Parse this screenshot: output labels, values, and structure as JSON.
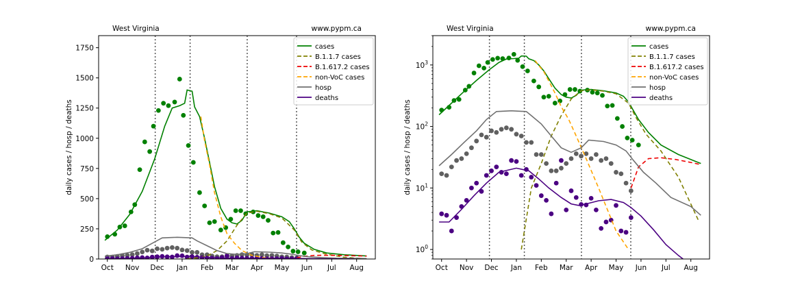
{
  "chart_data": [
    {
      "type": "line",
      "scale": "linear",
      "title_left": "West Virginia",
      "title_right": "www.pypm.ca",
      "ylabel": "daily cases / hosp / deaths",
      "xlabel": "",
      "ylim": [
        0,
        1850
      ],
      "y_ticks": [
        0,
        250,
        500,
        750,
        1000,
        1250,
        1500,
        1750
      ],
      "y_tick_labels": [
        "0",
        "250",
        "500",
        "750",
        "1000",
        "1250",
        "1500",
        "1750"
      ],
      "x_range_months": [
        -0.35,
        10.75
      ],
      "x_ticks": [
        0,
        1,
        2,
        3,
        4,
        5,
        6,
        7,
        8,
        9,
        10
      ],
      "x_tick_labels": [
        "Oct",
        "Nov",
        "Dec",
        "Jan",
        "Feb",
        "Mar",
        "Apr",
        "May",
        "Jun",
        "Jul",
        "Aug"
      ],
      "vlines_month": [
        1.92,
        3.32,
        5.61,
        7.59
      ],
      "grid": false,
      "legend_position": "top-right",
      "series": [
        {
          "name": "cases",
          "kind": "line",
          "color": "#008000",
          "dash": "solid",
          "points": [
            [
              -0.1,
              155
            ],
            [
              0.4,
              240
            ],
            [
              0.9,
              370
            ],
            [
              1.4,
              560
            ],
            [
              1.9,
              830
            ],
            [
              2.3,
              1100
            ],
            [
              2.6,
              1250
            ],
            [
              2.9,
              1270
            ],
            [
              3.1,
              1290
            ],
            [
              3.2,
              1400
            ],
            [
              3.4,
              1390
            ],
            [
              3.5,
              1260
            ],
            [
              3.7,
              1180
            ],
            [
              3.9,
              1000
            ],
            [
              4.1,
              800
            ],
            [
              4.3,
              600
            ],
            [
              4.55,
              420
            ],
            [
              4.8,
              330
            ],
            [
              5.0,
              300
            ],
            [
              5.2,
              290
            ],
            [
              5.4,
              320
            ],
            [
              5.6,
              390
            ],
            [
              6.0,
              400
            ],
            [
              6.5,
              380
            ],
            [
              7.0,
              350
            ],
            [
              7.3,
              310
            ],
            [
              7.5,
              250
            ],
            [
              7.7,
              180
            ],
            [
              7.9,
              130
            ],
            [
              8.3,
              80
            ],
            [
              8.8,
              50
            ],
            [
              9.5,
              35
            ],
            [
              10.4,
              25
            ]
          ]
        },
        {
          "name": "B.1.1.7 cases",
          "kind": "line",
          "color": "#808000",
          "dash": "dashed",
          "points": [
            [
              3.2,
              1
            ],
            [
              3.6,
              10
            ],
            [
              4.0,
              25
            ],
            [
              4.4,
              70
            ],
            [
              4.8,
              150
            ],
            [
              5.2,
              280
            ],
            [
              5.6,
              380
            ],
            [
              6.0,
              395
            ],
            [
              6.5,
              375
            ],
            [
              7.0,
              340
            ],
            [
              7.5,
              240
            ],
            [
              7.8,
              140
            ],
            [
              8.2,
              75
            ],
            [
              8.8,
              40
            ],
            [
              9.5,
              15
            ],
            [
              10.3,
              3
            ]
          ]
        },
        {
          "name": "B.1.617.2 cases",
          "kind": "line",
          "color": "#ee0000",
          "dash": "dashed",
          "points": [
            [
              7.6,
              10
            ],
            [
              7.9,
              22
            ],
            [
              8.3,
              30
            ],
            [
              8.8,
              31
            ],
            [
              9.4,
              29
            ],
            [
              10.0,
              26
            ],
            [
              10.4,
              24
            ]
          ]
        },
        {
          "name": "non-VoC cases",
          "kind": "line",
          "color": "#ffa500",
          "dash": "dashed",
          "points": [
            [
              3.75,
              1180
            ],
            [
              3.9,
              980
            ],
            [
              4.1,
              780
            ],
            [
              4.3,
              550
            ],
            [
              4.55,
              350
            ],
            [
              4.8,
              210
            ],
            [
              5.1,
              130
            ],
            [
              5.4,
              70
            ],
            [
              5.8,
              30
            ],
            [
              6.3,
              10
            ],
            [
              7.0,
              2
            ],
            [
              7.5,
              1
            ]
          ]
        },
        {
          "name": "hosp",
          "kind": "line",
          "color": "#707070",
          "dash": "solid",
          "points": [
            [
              -0.1,
              23
            ],
            [
              0.4,
              35
            ],
            [
              0.9,
              55
            ],
            [
              1.4,
              85
            ],
            [
              1.8,
              130
            ],
            [
              2.2,
              175
            ],
            [
              2.8,
              180
            ],
            [
              3.4,
              175
            ],
            [
              3.6,
              150
            ],
            [
              4.0,
              110
            ],
            [
              4.4,
              70
            ],
            [
              4.8,
              45
            ],
            [
              5.2,
              38
            ],
            [
              5.6,
              45
            ],
            [
              5.9,
              60
            ],
            [
              6.5,
              57
            ],
            [
              7.0,
              50
            ],
            [
              7.4,
              40
            ],
            [
              7.7,
              28
            ],
            [
              8.1,
              18
            ],
            [
              8.6,
              12
            ],
            [
              9.2,
              7
            ],
            [
              10.0,
              5
            ],
            [
              10.4,
              3.6
            ]
          ]
        },
        {
          "name": "deaths",
          "kind": "line",
          "color": "#4b0082",
          "dash": "solid",
          "points": [
            [
              -0.1,
              2.8
            ],
            [
              0.3,
              2.8
            ],
            [
              0.8,
              4.5
            ],
            [
              1.3,
              7.5
            ],
            [
              1.8,
              12
            ],
            [
              2.3,
              18
            ],
            [
              3.0,
              21
            ],
            [
              3.5,
              19
            ],
            [
              3.9,
              14
            ],
            [
              4.3,
              10
            ],
            [
              4.8,
              7
            ],
            [
              5.2,
              5.5
            ],
            [
              5.5,
              5.2
            ],
            [
              5.8,
              5.5
            ],
            [
              6.3,
              6.2
            ],
            [
              6.8,
              6.5
            ],
            [
              7.3,
              5.8
            ],
            [
              7.6,
              4.8
            ],
            [
              8.0,
              3.5
            ],
            [
              8.5,
              2.1
            ],
            [
              9.0,
              1.2
            ],
            [
              9.5,
              0.8
            ],
            [
              9.9,
              0.6
            ]
          ]
        },
        {
          "name": "",
          "kind": "scatter",
          "color": "#008000",
          "points": [
            [
              0,
              185
            ],
            [
              0.3,
              205
            ],
            [
              0.5,
              265
            ],
            [
              0.7,
              275
            ],
            [
              0.95,
              390
            ],
            [
              1.1,
              450
            ],
            [
              1.3,
              740
            ],
            [
              1.5,
              970
            ],
            [
              1.7,
              890
            ],
            [
              1.85,
              1100
            ],
            [
              2.05,
              1230
            ],
            [
              2.25,
              1290
            ],
            [
              2.45,
              1270
            ],
            [
              2.7,
              1300
            ],
            [
              2.9,
              1490
            ],
            [
              3.05,
              1190
            ],
            [
              3.25,
              940
            ],
            [
              3.45,
              800
            ],
            [
              3.7,
              550
            ],
            [
              3.9,
              440
            ],
            [
              4.1,
              300
            ],
            [
              4.3,
              310
            ],
            [
              4.55,
              240
            ],
            [
              4.75,
              260
            ],
            [
              4.95,
              330
            ],
            [
              5.15,
              400
            ],
            [
              5.35,
              400
            ],
            [
              5.55,
              375
            ],
            [
              5.85,
              390
            ],
            [
              6.05,
              360
            ],
            [
              6.25,
              350
            ],
            [
              6.45,
              320
            ],
            [
              6.65,
              215
            ],
            [
              6.85,
              220
            ],
            [
              7.05,
              135
            ],
            [
              7.25,
              100
            ],
            [
              7.45,
              65
            ],
            [
              7.65,
              60
            ],
            [
              7.9,
              50
            ]
          ]
        },
        {
          "name": "",
          "kind": "scatter",
          "color": "#606060",
          "points": [
            [
              0,
              17
            ],
            [
              0.2,
              16
            ],
            [
              0.4,
              22
            ],
            [
              0.6,
              28
            ],
            [
              0.8,
              30
            ],
            [
              1.0,
              36
            ],
            [
              1.2,
              45
            ],
            [
              1.4,
              58
            ],
            [
              1.6,
              73
            ],
            [
              1.8,
              67
            ],
            [
              2.0,
              85
            ],
            [
              2.2,
              80
            ],
            [
              2.4,
              90
            ],
            [
              2.6,
              95
            ],
            [
              2.8,
              90
            ],
            [
              3.0,
              75
            ],
            [
              3.2,
              70
            ],
            [
              3.4,
              55
            ],
            [
              3.6,
              55
            ],
            [
              3.8,
              35
            ],
            [
              4.0,
              35
            ],
            [
              4.2,
              25
            ],
            [
              4.4,
              19
            ],
            [
              4.6,
              19
            ],
            [
              4.8,
              21
            ],
            [
              5.0,
              25
            ],
            [
              5.2,
              30
            ],
            [
              5.4,
              36
            ],
            [
              5.6,
              33
            ],
            [
              5.8,
              36
            ],
            [
              6.0,
              30
            ],
            [
              6.2,
              35
            ],
            [
              6.4,
              28
            ],
            [
              6.6,
              30
            ],
            [
              6.8,
              25
            ],
            [
              7.0,
              18
            ],
            [
              7.2,
              17
            ],
            [
              7.4,
              12
            ],
            [
              7.6,
              9
            ]
          ]
        },
        {
          "name": "",
          "kind": "scatter",
          "color": "#4b0082",
          "points": [
            [
              0,
              3.8
            ],
            [
              0.2,
              3.6
            ],
            [
              0.4,
              2.0
            ],
            [
              0.6,
              3.3
            ],
            [
              0.8,
              5
            ],
            [
              1.0,
              6.3
            ],
            [
              1.2,
              10
            ],
            [
              1.4,
              12
            ],
            [
              1.6,
              8.8
            ],
            [
              1.8,
              16
            ],
            [
              2.0,
              19
            ],
            [
              2.2,
              22
            ],
            [
              2.4,
              18
            ],
            [
              2.6,
              17
            ],
            [
              2.8,
              28
            ],
            [
              3.0,
              27
            ],
            [
              3.2,
              16
            ],
            [
              3.4,
              20
            ],
            [
              3.6,
              15
            ],
            [
              3.8,
              11
            ],
            [
              4.0,
              7.5
            ],
            [
              4.2,
              6.3
            ],
            [
              4.4,
              3.8
            ],
            [
              4.6,
              12
            ],
            [
              4.8,
              28
            ],
            [
              5.0,
              4.4
            ],
            [
              5.2,
              9
            ],
            [
              5.4,
              7
            ],
            [
              5.6,
              5.4
            ],
            [
              5.8,
              5.3
            ],
            [
              6.0,
              6.8
            ],
            [
              6.2,
              4.4
            ],
            [
              6.4,
              2.2
            ],
            [
              6.6,
              2.8
            ],
            [
              6.8,
              3
            ],
            [
              7.0,
              5.2
            ],
            [
              7.2,
              2.0
            ],
            [
              7.4,
              1.9
            ],
            [
              7.6,
              3.3
            ]
          ]
        }
      ]
    },
    {
      "type": "line",
      "scale": "log",
      "title_left": "West Virginia",
      "title_right": "www.pypm.ca",
      "ylabel": "daily cases / hosp / deaths",
      "xlabel": "",
      "ylim": [
        0.7,
        3000
      ],
      "y_ticks": [
        1,
        10,
        100,
        1000
      ],
      "y_tick_labels": [
        "10^0",
        "10^1",
        "10^2",
        "10^3"
      ],
      "x_range_months": [
        -0.35,
        10.75
      ],
      "x_ticks": [
        0,
        1,
        2,
        3,
        4,
        5,
        6,
        7,
        8,
        9,
        10
      ],
      "x_tick_labels": [
        "Oct",
        "Nov",
        "Dec",
        "Jan",
        "Feb",
        "Mar",
        "Apr",
        "May",
        "Jun",
        "Jul",
        "Aug"
      ],
      "vlines_month": [
        1.92,
        3.32,
        5.61,
        7.59
      ],
      "grid": false,
      "legend_position": "top-right",
      "series_from_chart": 0
    }
  ],
  "legend_entries": [
    {
      "label": "cases",
      "color": "#008000",
      "dash": "solid"
    },
    {
      "label": "B.1.1.7 cases",
      "color": "#808000",
      "dash": "dashed"
    },
    {
      "label": "B.1.617.2 cases",
      "color": "#ee0000",
      "dash": "dashed"
    },
    {
      "label": "non-VoC cases",
      "color": "#ffa500",
      "dash": "dashed"
    },
    {
      "label": "hosp",
      "color": "#707070",
      "dash": "solid"
    },
    {
      "label": "deaths",
      "color": "#4b0082",
      "dash": "solid"
    }
  ]
}
